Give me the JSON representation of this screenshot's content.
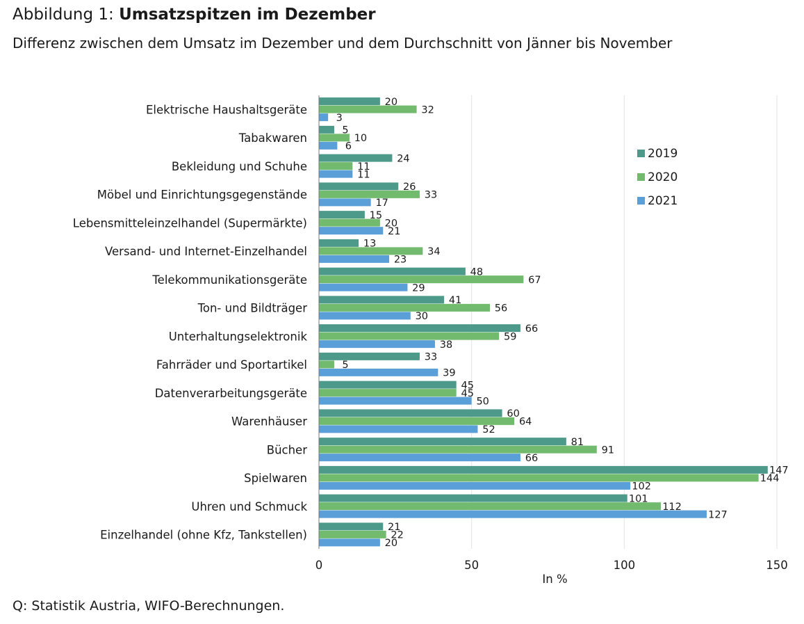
{
  "header": {
    "title_prefix": "Abbildung 1: ",
    "title_main": "Umsatzspitzen im Dezember",
    "subtitle": "Differenz zwischen dem Umsatz im Dezember und dem Durchschnitt von Jänner bis November"
  },
  "footer": {
    "source": "Q: Statistik Austria, WIFO-Berechnungen."
  },
  "chart_data": {
    "type": "bar",
    "orientation": "horizontal",
    "categories": [
      "Elektrische Haushaltsgeräte",
      "Tabakwaren",
      "Bekleidung und Schuhe",
      "Möbel und Einrichtungsgegenstände",
      "Lebensmitteleinzelhandel (Supermärkte)",
      "Versand- und Internet-Einzelhandel",
      "Telekommunikationsgeräte",
      "Ton- und Bildträger",
      "Unterhaltungselektronik",
      "Fahrräder und Sportartikel",
      "Datenverarbeitungsgeräte",
      "Warenhäuser",
      "Bücher",
      "Spielwaren",
      "Uhren und Schmuck",
      "Einzelhandel (ohne Kfz, Tankstellen)"
    ],
    "series": [
      {
        "name": "2019",
        "color": "#4e9a8a",
        "values": [
          20,
          5,
          24,
          26,
          15,
          13,
          48,
          41,
          66,
          33,
          45,
          60,
          81,
          147,
          101,
          21
        ]
      },
      {
        "name": "2020",
        "color": "#72bb6e",
        "values": [
          32,
          10,
          11,
          33,
          20,
          34,
          67,
          56,
          59,
          5,
          45,
          64,
          91,
          144,
          112,
          22
        ]
      },
      {
        "name": "2021",
        "color": "#5b9fd8",
        "values": [
          3,
          6,
          11,
          17,
          21,
          23,
          29,
          30,
          38,
          39,
          50,
          52,
          66,
          102,
          127,
          20
        ]
      }
    ],
    "xlabel": "In %",
    "xlim": [
      0,
      150
    ],
    "xticks": [
      0,
      50,
      100,
      150
    ],
    "grid": true,
    "legend_position": "right"
  }
}
